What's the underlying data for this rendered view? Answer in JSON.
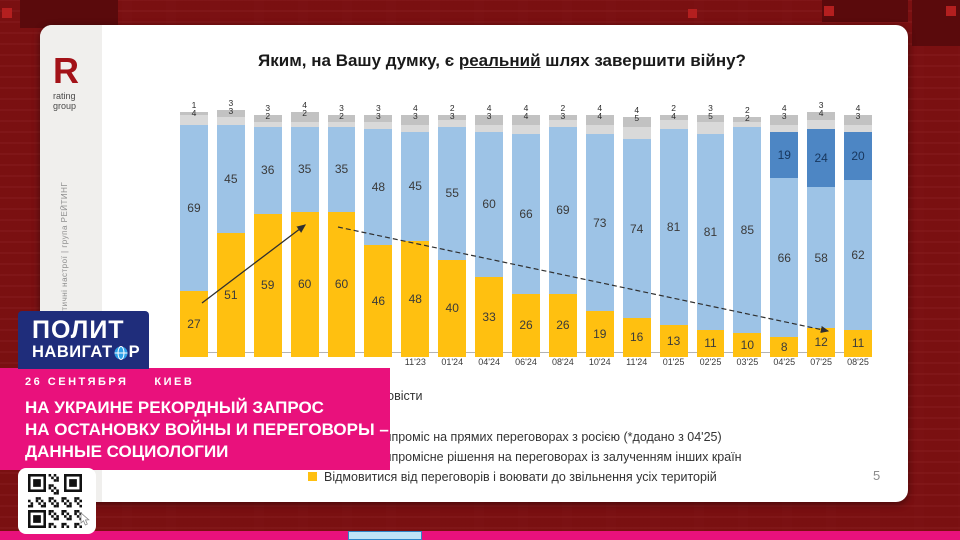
{
  "colors": {
    "background_red": "#7b1113",
    "banner_pink": "#e9117c",
    "logo_navy": "#1f2d7b",
    "bar_yellow": "#ffc010",
    "bar_light_blue": "#9dc3e6",
    "bar_dark_blue": "#4d86c4",
    "bar_gray_cap": "#d9d9d9",
    "bar_gray_top": "#c2c2c2"
  },
  "slide": {
    "logo": {
      "mark": "R",
      "line1": "rating",
      "line2": "group"
    },
    "sidebar_vertical_text": "суспільно-політичні настрої | група РЕЙТИНГ",
    "title": {
      "prefix": "Яким, на Вашу думку, є ",
      "underlined": "реальний",
      "suffix": " шлях завершити війну?"
    },
    "page_number": "5"
  },
  "chart_data": {
    "type": "bar",
    "stacked": true,
    "title": "Яким, на Вашу думку, є реальний шлях завершити війну?",
    "ylim": [
      0,
      100
    ],
    "legend_position": "bottom",
    "categories": [
      "",
      "",
      "",
      "",
      "",
      "",
      "11'23",
      "01'24",
      "04'24",
      "06'24",
      "08'24",
      "10'24",
      "11'24",
      "01'25",
      "02'25",
      "03'25",
      "04'25",
      "07'25",
      "08'25"
    ],
    "series": [
      {
        "name": "Відмовитися від переговорів і воювати до звільнення усіх територій",
        "color": "#ffc010",
        "values": [
          27,
          51,
          59,
          60,
          60,
          46,
          48,
          40,
          33,
          26,
          26,
          19,
          16,
          13,
          11,
          10,
          8,
          12,
          11
        ]
      },
      {
        "name": "Шукати компромісне рішення на переговорах із залученням інших країн",
        "color": "#9dc3e6",
        "values": [
          69,
          45,
          36,
          35,
          35,
          48,
          45,
          55,
          60,
          66,
          69,
          73,
          74,
          81,
          81,
          85,
          66,
          58,
          62
        ]
      },
      {
        "name": "Шукати компроміс на прямих переговорах з росією (*додано з 04'25)",
        "color": "#4d86c4",
        "values": [
          0,
          0,
          0,
          0,
          0,
          0,
          0,
          0,
          0,
          0,
          0,
          0,
          0,
          0,
          0,
          0,
          19,
          24,
          20
        ]
      },
      {
        "name": "Важко відповісти",
        "color": "#d9d9d9",
        "values": [
          4,
          3,
          2,
          2,
          2,
          3,
          3,
          3,
          3,
          4,
          3,
          4,
          5,
          4,
          5,
          2,
          3,
          4,
          3
        ]
      },
      {
        "name": "top-gray-segment",
        "color": "#c2c2c2",
        "values": [
          1,
          3,
          3,
          4,
          3,
          3,
          4,
          2,
          4,
          4,
          2,
          4,
          4,
          2,
          3,
          2,
          4,
          3,
          4
        ]
      }
    ]
  },
  "legend": {
    "rows": [
      {
        "label": "Важко відповісти",
        "color": "#b7b7b7"
      },
      {
        "label": "Шукати компроміс на прямих переговорах з росією (*додано з 04'25)",
        "color": "#4d86c4"
      },
      {
        "label": "Шукати компромісне рішення на переговорах із залученням інших країн",
        "color": "#9dc3e6"
      },
      {
        "label": "Відмовитися від переговорів і воювати до звільнення усіх територій",
        "color": "#ffc010"
      }
    ]
  },
  "pn_logo": {
    "line1": "ПОЛИТ",
    "line2_pre": "НАВИГАТ",
    "line2_post": "Р"
  },
  "banner": {
    "date": "26 СЕНТЯБРЯ",
    "city": "КИЕВ",
    "headline_lines": [
      "НА УКРАИНЕ РЕКОРДНЫЙ ЗАПРОС",
      "НА ОСТАНОВКУ ВОЙНЫ И ПЕРЕГОВОРЫ –",
      "ДАННЫЕ СОЦИОЛОГИИ"
    ]
  }
}
